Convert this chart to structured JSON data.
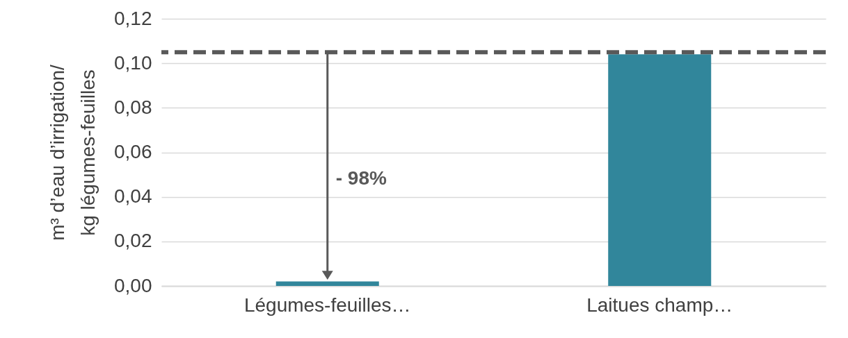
{
  "chart_data": {
    "type": "bar",
    "ylabel": "m³ d’eau d’irrigation/\nkg légumes-feuilles",
    "categories": [
      "Légumes-feuilles…",
      "Laitues champ…"
    ],
    "values": [
      0.002,
      0.104
    ],
    "color": "#31869b",
    "ylim": [
      0,
      0.12
    ],
    "yticks": [
      {
        "value": 0,
        "label": "0,00"
      },
      {
        "value": 0.02,
        "label": "0,02"
      },
      {
        "value": 0.04,
        "label": "0,04"
      },
      {
        "value": 0.06,
        "label": "0,06"
      },
      {
        "value": 0.08,
        "label": "0,08"
      },
      {
        "value": 0.1,
        "label": "0,10"
      },
      {
        "value": 0.12,
        "label": "0,12"
      }
    ],
    "grid": "y",
    "ref_lines": [
      {
        "axis": "y",
        "value": 0.105,
        "color": "#595959",
        "line_style": "dashed"
      }
    ],
    "annotations": [
      "- 98%"
    ]
  }
}
